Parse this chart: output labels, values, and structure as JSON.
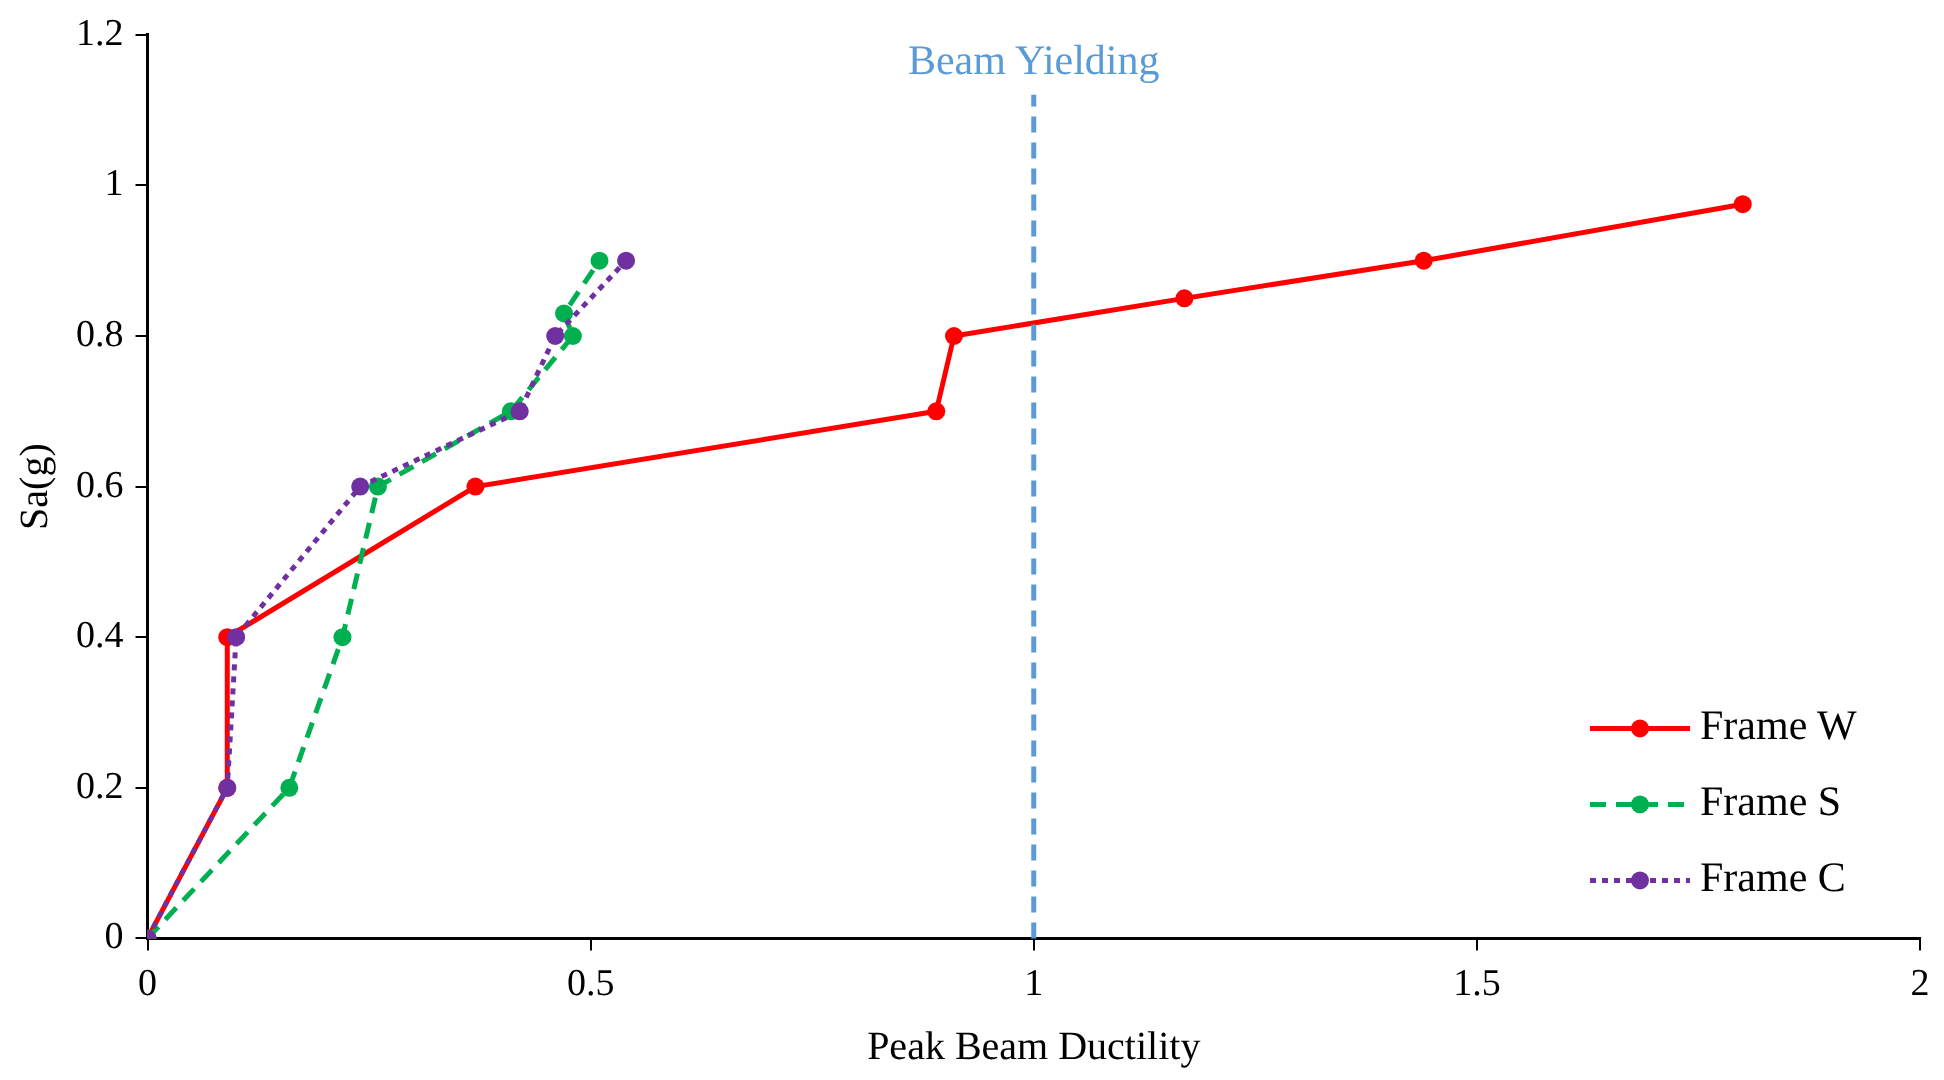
{
  "chart_data": {
    "type": "line",
    "xlabel": "Peak Beam Ductility",
    "ylabel": "Sa(g)",
    "xlim": [
      0,
      2
    ],
    "xticks": [
      0,
      0.5,
      1,
      1.5,
      2
    ],
    "ylim": [
      0,
      1.2
    ],
    "yticks": [
      0,
      0.2,
      0.4,
      0.6,
      0.8,
      1,
      1.2
    ],
    "grid": false,
    "legend": "bottom right",
    "marker": "circle",
    "ref_lines": [
      {
        "axis": "x",
        "value": 1,
        "label": "Beam Yielding",
        "color": "#5b9bd5",
        "line_style": "dashed"
      }
    ],
    "series": [
      {
        "name": "Frame W",
        "color": "#ff0000",
        "line_style": "solid",
        "x": [
          0,
          0.09,
          0.09,
          0.37,
          0.89,
          0.91,
          1.17,
          1.44,
          1.8
        ],
        "values": [
          0,
          0.2,
          0.4,
          0.6,
          0.7,
          0.8,
          0.85,
          0.9,
          0.975
        ]
      },
      {
        "name": "Frame S",
        "color": "#00b050",
        "line_style": "dashed",
        "x": [
          0,
          0.16,
          0.22,
          0.26,
          0.41,
          0.48,
          0.47,
          0.51
        ],
        "values": [
          0,
          0.2,
          0.4,
          0.6,
          0.7,
          0.8,
          0.83,
          0.9
        ]
      },
      {
        "name": "Frame C",
        "color": "#7030a0",
        "line_style": "dotted",
        "x": [
          0,
          0.09,
          0.1,
          0.24,
          0.42,
          0.46,
          0.54
        ],
        "values": [
          0,
          0.2,
          0.4,
          0.6,
          0.7,
          0.8,
          0.9
        ]
      }
    ]
  }
}
